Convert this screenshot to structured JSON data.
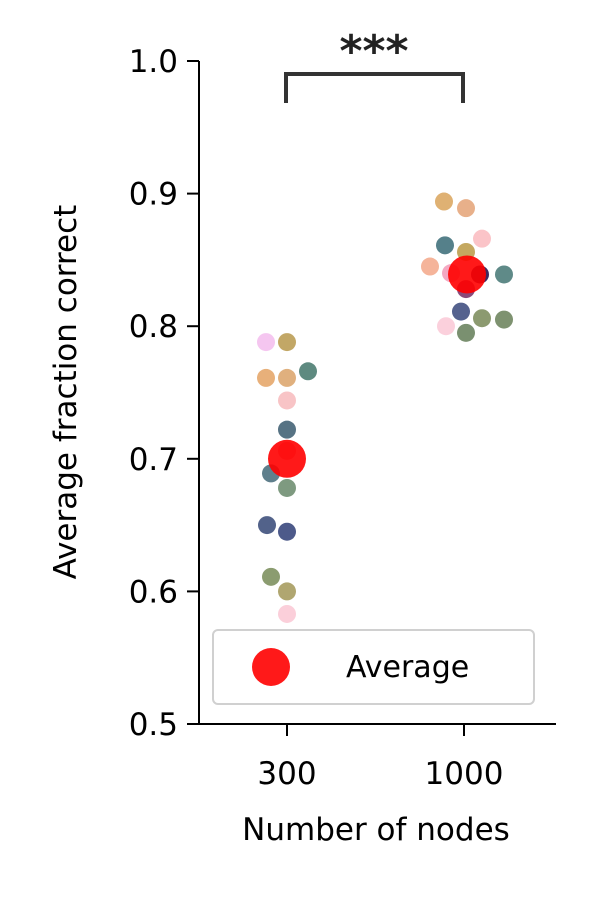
{
  "chart_data": {
    "type": "scatter",
    "title": "",
    "xlabel": "Number of nodes",
    "ylabel": "Average fraction correct",
    "categories": [
      "300",
      "1000"
    ],
    "ylim": [
      0.5,
      1.0
    ],
    "yticks": [
      "0.5",
      "0.6",
      "0.7",
      "0.8",
      "0.9",
      "1.0"
    ],
    "significance": "***",
    "legend": {
      "label": "Average",
      "placement": "lower-right"
    },
    "average_color": "#ff0000",
    "groups": [
      {
        "category": "300",
        "average": 0.7,
        "points": [
          {
            "y": 0.788,
            "color": "#f5c6f0"
          },
          {
            "y": 0.788,
            "color": "#c2a766"
          },
          {
            "y": 0.766,
            "color": "#5e8a80"
          },
          {
            "y": 0.761,
            "color": "#e8b07a"
          },
          {
            "y": 0.761,
            "color": "#e0b07e"
          },
          {
            "y": 0.744,
            "color": "#f8c4c6"
          },
          {
            "y": 0.722,
            "color": "#577384"
          },
          {
            "y": 0.706,
            "color": "#f0a0a8"
          },
          {
            "y": 0.689,
            "color": "#5f7f8c"
          },
          {
            "y": 0.678,
            "color": "#7e9a80"
          },
          {
            "y": 0.65,
            "color": "#52628a"
          },
          {
            "y": 0.645,
            "color": "#4d5a8a"
          },
          {
            "y": 0.611,
            "color": "#8b9c70"
          },
          {
            "y": 0.6,
            "color": "#b0a670"
          },
          {
            "y": 0.583,
            "color": "#fbcfda"
          }
        ]
      },
      {
        "category": "1000",
        "average": 0.839,
        "points": [
          {
            "y": 0.894,
            "color": "#dfb173"
          },
          {
            "y": 0.889,
            "color": "#e8b08a"
          },
          {
            "y": 0.866,
            "color": "#fbc4c8"
          },
          {
            "y": 0.861,
            "color": "#55808a"
          },
          {
            "y": 0.856,
            "color": "#c4a860"
          },
          {
            "y": 0.845,
            "color": "#f5b49a"
          },
          {
            "y": 0.84,
            "color": "#f4a8c2"
          },
          {
            "y": 0.839,
            "color": "#3c2a60"
          },
          {
            "y": 0.839,
            "color": "#5f8a88"
          },
          {
            "y": 0.828,
            "color": "#8a4a7a"
          },
          {
            "y": 0.811,
            "color": "#55628e"
          },
          {
            "y": 0.806,
            "color": "#8c9a70"
          },
          {
            "y": 0.805,
            "color": "#7e9270"
          },
          {
            "y": 0.8,
            "color": "#fbd0dc"
          },
          {
            "y": 0.795,
            "color": "#7a9070"
          }
        ]
      }
    ]
  }
}
